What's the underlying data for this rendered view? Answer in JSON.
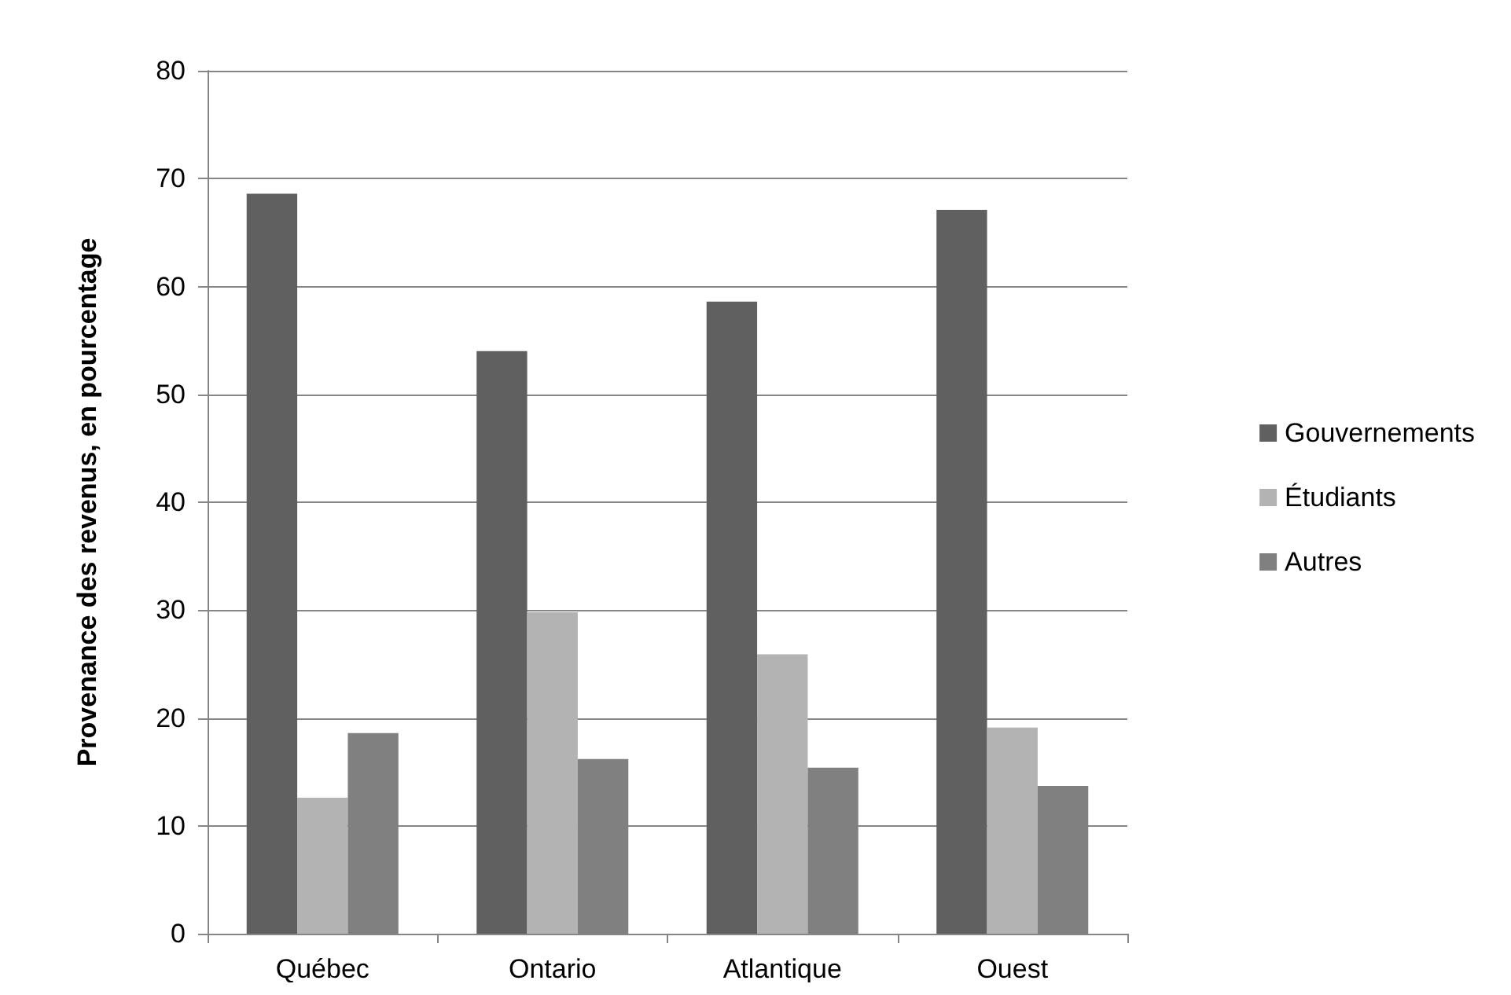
{
  "chart_data": {
    "type": "bar",
    "ylabel": "Provenance des revenus, en pourcentage",
    "categories": [
      "Québec",
      "Ontario",
      "Atlantique",
      "Ouest"
    ],
    "series": [
      {
        "name": "Gouvernements",
        "color": "#606060",
        "values": [
          68.6,
          54,
          58.6,
          67.1
        ]
      },
      {
        "name": "Étudiants",
        "color": "#b3b3b3",
        "values": [
          12.6,
          29.8,
          25.9,
          19.1
        ]
      },
      {
        "name": "Autres",
        "color": "#808080",
        "values": [
          18.6,
          16.2,
          15.4,
          13.7
        ]
      }
    ],
    "ylim": [
      0,
      80
    ],
    "yticks": [
      0,
      10,
      20,
      30,
      40,
      50,
      60,
      70,
      80
    ],
    "grid": "y",
    "legend": "right"
  }
}
